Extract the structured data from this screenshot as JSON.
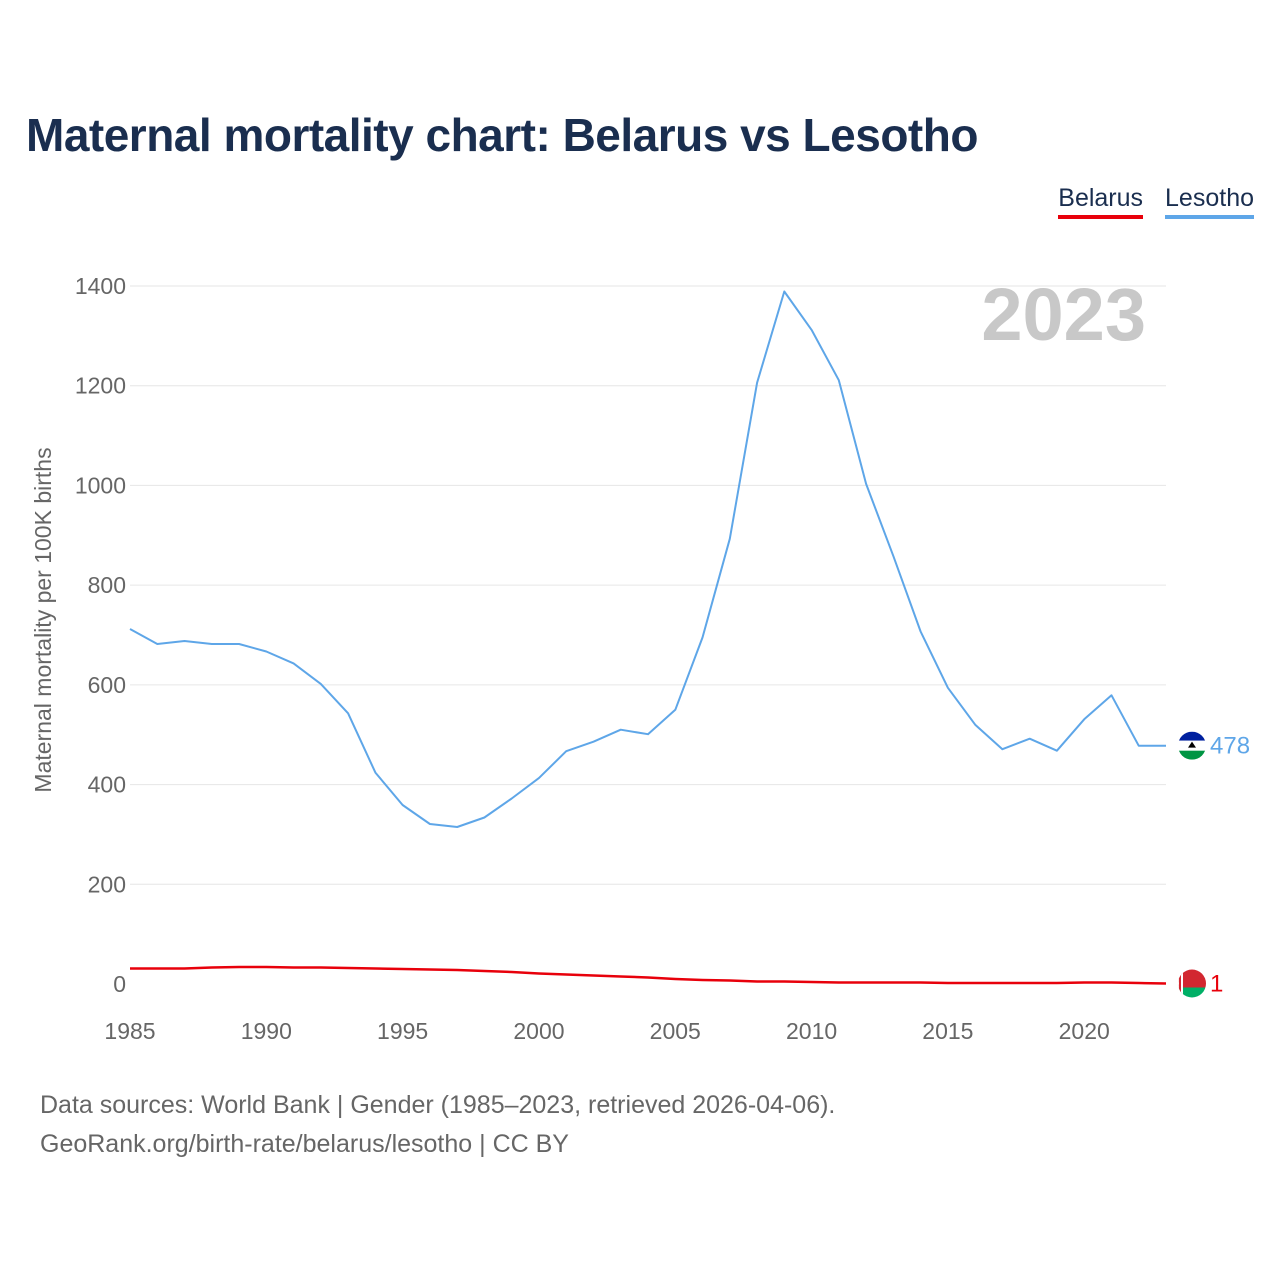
{
  "title": "Maternal mortality chart: Belarus vs Lesotho",
  "legend": {
    "belarus": "Belarus",
    "lesotho": "Lesotho"
  },
  "footer": {
    "line1": "Data sources: World Bank | Gender (1985–2023, retrieved 2026-04-06).",
    "line2": "GeoRank.org/birth-rate/belarus/lesotho | CC BY"
  },
  "colors": {
    "belarus": "#e8000b",
    "lesotho": "#5ea6e8",
    "title": "#1a2e4f",
    "grid": "#e6e6e6",
    "axis_text": "#666666",
    "year_watermark": "#c8c8c8"
  },
  "chart_data": {
    "type": "line",
    "title": "Maternal mortality chart: Belarus vs Lesotho",
    "xlabel": "",
    "ylabel": "Maternal mortality per 100K births",
    "year_label": "2023",
    "xlim": [
      1985,
      2023
    ],
    "ylim": [
      0,
      1400
    ],
    "x_ticks": [
      1985,
      1990,
      1995,
      2000,
      2005,
      2010,
      2015,
      2020
    ],
    "y_ticks": [
      0,
      200,
      400,
      600,
      800,
      1000,
      1200,
      1400
    ],
    "x": [
      1985,
      1986,
      1987,
      1988,
      1989,
      1990,
      1991,
      1992,
      1993,
      1994,
      1995,
      1996,
      1997,
      1998,
      1999,
      2000,
      2001,
      2002,
      2003,
      2004,
      2005,
      2006,
      2007,
      2008,
      2009,
      2010,
      2011,
      2012,
      2013,
      2014,
      2015,
      2016,
      2017,
      2018,
      2019,
      2020,
      2021,
      2022,
      2023
    ],
    "series": [
      {
        "name": "Belarus",
        "color": "#e8000b",
        "end_label": "1",
        "values": [
          31,
          31,
          31,
          33,
          34,
          34,
          33,
          33,
          32,
          31,
          30,
          29,
          28,
          26,
          24,
          21,
          19,
          17,
          15,
          13,
          10,
          8,
          7,
          5,
          5,
          4,
          3,
          3,
          3,
          3,
          2,
          2,
          2,
          2,
          2,
          3,
          3,
          2,
          1
        ]
      },
      {
        "name": "Lesotho",
        "color": "#5ea6e8",
        "end_label": "478",
        "values": [
          712,
          682,
          688,
          682,
          682,
          667,
          643,
          602,
          543,
          424,
          359,
          321,
          315,
          334,
          372,
          413,
          467,
          486,
          510,
          501,
          550,
          695,
          893,
          1206,
          1389,
          1312,
          1211,
          1003,
          858,
          707,
          594,
          520,
          471,
          492,
          468,
          531,
          579,
          478,
          478
        ]
      }
    ]
  }
}
